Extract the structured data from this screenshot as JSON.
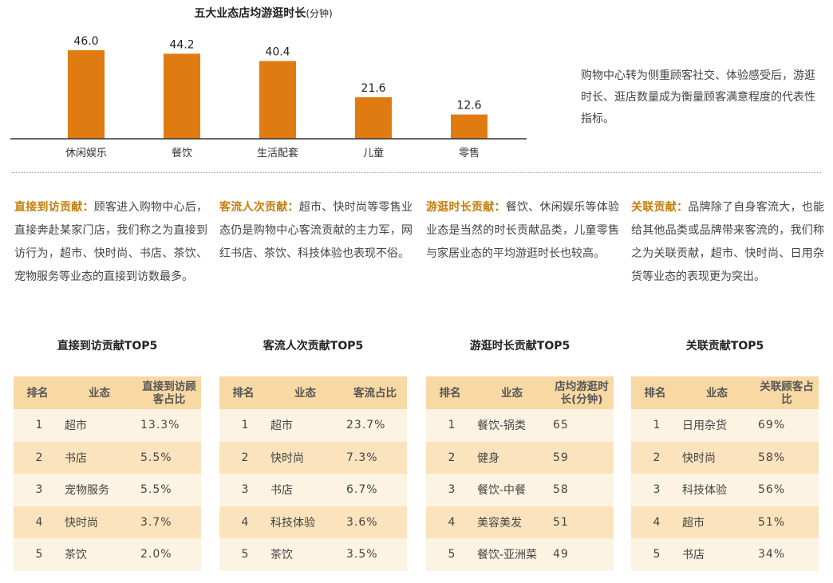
{
  "chart_data": {
    "type": "bar",
    "title": "五大业态店均游逛时长",
    "title_unit": "(分钟)",
    "categories": [
      "休闲娱乐",
      "餐饮",
      "生活配套",
      "儿童",
      "零售"
    ],
    "values": [
      46.0,
      44.2,
      40.4,
      21.6,
      12.6
    ],
    "ylim": [
      0,
      50
    ],
    "color": "#e07b12"
  },
  "side_note": "购物中心转为侧重顾客社交、体验感受后，游逛时长、逛店数量成为衡量顾客满意程度的代表性指标。",
  "paragraphs": [
    {
      "head": "直接到访贡献：",
      "text": "顾客进入购物中心后，直接奔赴某家门店，我们称之为直接到访行为，超市、快时尚、书店、茶饮、宠物服务等业态的直接到访数最多。"
    },
    {
      "head": "客流人次贡献：",
      "text": "超市、快时尚等零售业态仍是购物中心客流贡献的主力军，网红书店、茶饮、科技体验也表现不俗。"
    },
    {
      "head": "游逛时长贡献：",
      "text": "餐饮、休闲娱乐等体验业态是当然的时长贡献品类，儿童零售与家居业态的平均游逛时长也较高。"
    },
    {
      "head": "关联贡献：",
      "text": "品牌除了自身客流大，也能给其他品类或品牌带来客流的，我们称之为关联贡献，超市、快时尚、日用杂货等业态的表现更为突出。"
    }
  ],
  "tables": [
    {
      "title": "直接到访贡献TOP5",
      "headers": [
        "排名",
        "业态",
        "直接到访顾客占比"
      ],
      "rows": [
        [
          "1",
          "超市",
          "13.3%"
        ],
        [
          "2",
          "书店",
          "5.5%"
        ],
        [
          "3",
          "宠物服务",
          "5.5%"
        ],
        [
          "4",
          "快时尚",
          "3.7%"
        ],
        [
          "5",
          "茶饮",
          "2.0%"
        ]
      ]
    },
    {
      "title": "客流人次贡献TOP5",
      "headers": [
        "排名",
        "业态",
        "客流占比"
      ],
      "rows": [
        [
          "1",
          "超市",
          "23.7%"
        ],
        [
          "2",
          "快时尚",
          "7.3%"
        ],
        [
          "3",
          "书店",
          "6.7%"
        ],
        [
          "4",
          "科技体验",
          "3.6%"
        ],
        [
          "5",
          "茶饮",
          "3.5%"
        ]
      ]
    },
    {
      "title": "游逛时长贡献TOP5",
      "headers": [
        "排名",
        "业态",
        "店均游逛时长(分钟)"
      ],
      "rows": [
        [
          "1",
          "餐饮-锅类",
          "65"
        ],
        [
          "2",
          "健身",
          "59"
        ],
        [
          "3",
          "餐饮-中餐",
          "58"
        ],
        [
          "4",
          "美容美发",
          "51"
        ],
        [
          "5",
          "餐饮-亚洲菜",
          "49"
        ]
      ]
    },
    {
      "title": "关联贡献TOP5",
      "headers": [
        "排名",
        "业态",
        "关联顾客占比"
      ],
      "rows": [
        [
          "1",
          "日用杂货",
          "69%"
        ],
        [
          "2",
          "快时尚",
          "58%"
        ],
        [
          "3",
          "科技体验",
          "56%"
        ],
        [
          "4",
          "超市",
          "51%"
        ],
        [
          "5",
          "书店",
          "34%"
        ]
      ]
    }
  ]
}
